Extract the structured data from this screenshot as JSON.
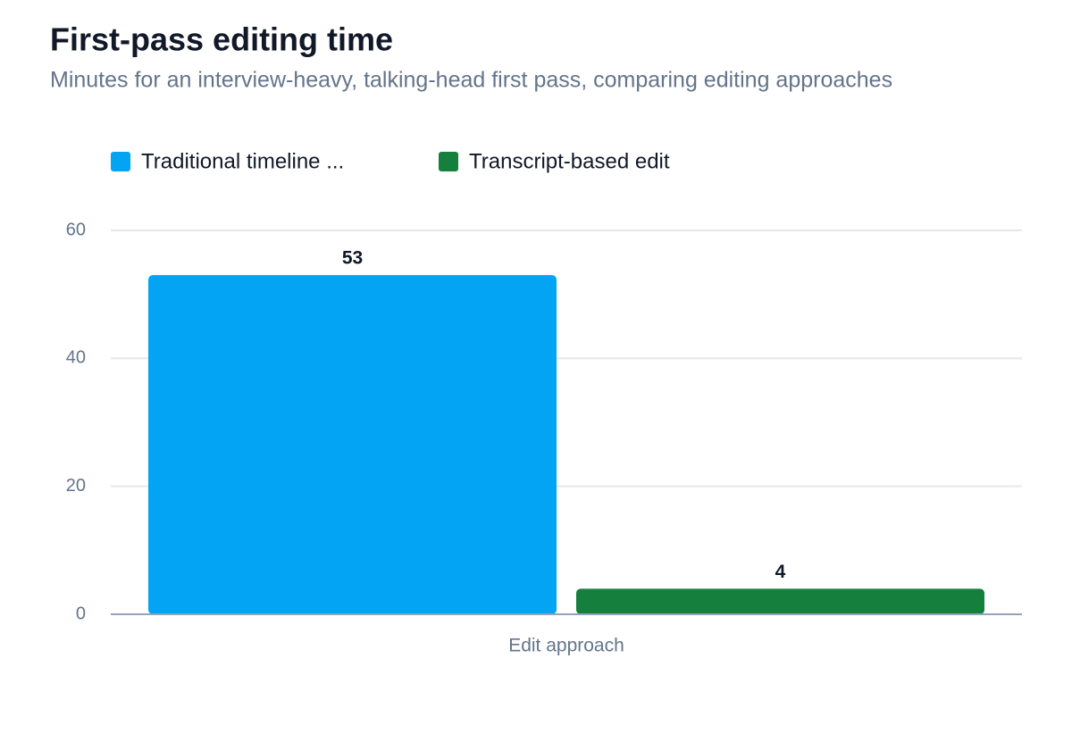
{
  "chart_data": {
    "type": "bar",
    "title": "First-pass editing time",
    "subtitle": "Minutes for an interview-heavy, talking-head first pass, comparing editing approaches",
    "x_label": "Edit approach",
    "categories": [
      null
    ],
    "series": [
      {
        "name": "Traditional timeline ...",
        "color": "#03a4f4",
        "values": [
          53
        ]
      },
      {
        "name": "Transcript-based edit",
        "color": "#15803d",
        "values": [
          4
        ]
      }
    ],
    "ylim": [
      0,
      60
    ],
    "yticks": [
      0,
      20,
      40,
      60
    ],
    "grid": true,
    "legend": "top-left"
  }
}
